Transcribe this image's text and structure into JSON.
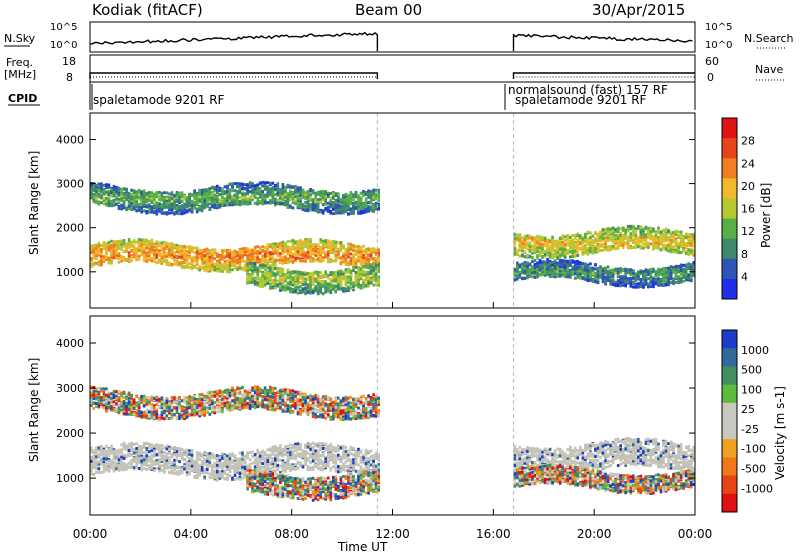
{
  "header": {
    "station": "Kodiak (fitACF)",
    "beam": "Beam 00",
    "date": "30/Apr/2015"
  },
  "summary_panels": {
    "nsky_label": "N.Sky",
    "nsky_ticks": [
      "10^5",
      "10^0"
    ],
    "nsearch_label": "N.Search",
    "nsearch_ticks": [
      "10^5",
      "10^0"
    ],
    "freq_label_1": "Freq.",
    "freq_label_2": "[MHz]",
    "freq_ticks": [
      "18",
      "8"
    ],
    "nave_label": "Nave",
    "nave_ticks": [
      "60",
      "0"
    ],
    "cpid_label": "CPID",
    "cpid_entries": [
      {
        "text": "spaletamode 9201 RF",
        "time": 0.0
      },
      {
        "text": "normalsound (fast) 157 RF",
        "time": 16.8
      },
      {
        "text": "spaletamode 9201 RF",
        "time": 16.8
      }
    ]
  },
  "colors": {
    "power_scale": [
      "#1f2fe8",
      "#2f55b4",
      "#3f8a6a",
      "#56b046",
      "#b4c832",
      "#f0b82a",
      "#f07d20",
      "#e8441c",
      "#e01414"
    ],
    "velocity_scale": [
      "#1e3cc8",
      "#2f6a9a",
      "#3f8f62",
      "#5cbb3a",
      "#c8c8c0",
      "#c8c8c0",
      "#f0a020",
      "#f07818",
      "#e84418",
      "#e01010"
    ],
    "ground_scatter": "#c3c3b6"
  },
  "chart_data": [
    {
      "type": "heatmap",
      "name": "power",
      "xlabel": "",
      "ylabel": "Slant Range [km]",
      "xlim": [
        0,
        24
      ],
      "ylim": [
        180,
        4600
      ],
      "y_ticks": [
        1000,
        2000,
        3000,
        4000
      ],
      "data_gap": [
        11.4,
        16.8
      ],
      "bands": [
        {
          "t": [
            0,
            11.4
          ],
          "center_km": 1400,
          "width_km": 250,
          "intensity_db": 24
        },
        {
          "t": [
            16.8,
            24
          ],
          "center_km": 1700,
          "width_km": 250,
          "intensity_db": 20
        },
        {
          "t": [
            0,
            11.4
          ],
          "center_km": 2700,
          "width_km": 250,
          "intensity_db": 12
        },
        {
          "t": [
            6.2,
            11.4
          ],
          "center_km": 900,
          "width_km": 250,
          "intensity_db": 16
        },
        {
          "t": [
            16.8,
            24
          ],
          "center_km": 1000,
          "width_km": 200,
          "intensity_db": 10
        }
      ],
      "colorbar": {
        "label": "Power [dB]",
        "ticks": [
          "4",
          "8",
          "12",
          "16",
          "20",
          "24",
          "28"
        ],
        "range": [
          0,
          32
        ]
      }
    },
    {
      "type": "heatmap",
      "name": "velocity",
      "xlabel": "Time UT",
      "ylabel": "Slant Range [km]",
      "xlim": [
        0,
        24
      ],
      "ylim": [
        180,
        4600
      ],
      "y_ticks": [
        1000,
        2000,
        3000,
        4000
      ],
      "x_ticks": [
        "00:00",
        "04:00",
        "08:00",
        "12:00",
        "16:00",
        "20:00",
        "00:00"
      ],
      "data_gap": [
        11.4,
        16.8
      ],
      "bands": [
        {
          "t": [
            0,
            11.4
          ],
          "center_km": 1400,
          "width_km": 300,
          "velocity": 0
        },
        {
          "t": [
            16.8,
            24
          ],
          "center_km": 1500,
          "width_km": 300,
          "velocity": 0
        },
        {
          "t": [
            0,
            11.4
          ],
          "center_km": 2700,
          "width_km": 250,
          "velocity": -100
        },
        {
          "t": [
            6.2,
            11.4
          ],
          "center_km": 900,
          "width_km": 250,
          "velocity": -100
        },
        {
          "t": [
            16.8,
            24
          ],
          "center_km": 1000,
          "width_km": 200,
          "velocity": -100
        }
      ],
      "colorbar": {
        "label": "Velocity [m s-1]",
        "ticks": [
          "1000",
          "500",
          "100",
          "25",
          "-25",
          "-100",
          "-500",
          "-1000"
        ]
      }
    }
  ]
}
